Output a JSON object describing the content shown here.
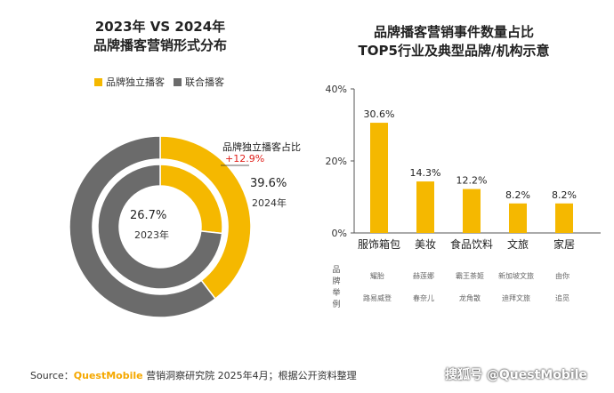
{
  "left_chart": {
    "title_line1": "2023年 VS 2024年",
    "title_line2": "品牌播客营销形式分布",
    "legend": [
      {
        "label": "品牌独立播客",
        "color": "#f5b800"
      },
      {
        "label": "联合播客",
        "color": "#6b6b6b"
      }
    ],
    "annotation": {
      "label": "品牌独立播客占比",
      "change": "+12.9%",
      "change_color": "#e0201b"
    },
    "outer_value": "39.6%",
    "outer_year": "2024年",
    "inner_value": "26.7%",
    "inner_year": "2023年"
  },
  "right_chart": {
    "title_line1": "品牌播客营销事件数量占比",
    "title_line2": "TOP5行业及典型品牌/机构示意",
    "brand_axis_label": [
      "品",
      "牌",
      "举",
      "例"
    ]
  },
  "chart_data": [
    {
      "type": "pie",
      "variant": "nested-donut",
      "title": "2023年 VS 2024年 品牌播客营销形式分布",
      "rings": [
        {
          "name": "2024年",
          "ring": "outer",
          "values": [
            39.6,
            60.4
          ],
          "labels": [
            "品牌独立播客",
            "联合播客"
          ]
        },
        {
          "name": "2023年",
          "ring": "inner",
          "values": [
            26.7,
            73.3
          ],
          "labels": [
            "品牌独立播客",
            "联合播客"
          ]
        }
      ],
      "colors": [
        "#f5b800",
        "#6b6b6b"
      ]
    },
    {
      "type": "bar",
      "title": "品牌播客营销事件数量占比 TOP5行业及典型品牌/机构示意",
      "categories": [
        "服饰箱包",
        "美妆",
        "食品饮料",
        "文旅",
        "家居"
      ],
      "values": [
        30.6,
        14.3,
        12.2,
        8.2,
        8.2
      ],
      "value_labels": [
        "30.6%",
        "14.3%",
        "12.2%",
        "8.2%",
        "8.2%"
      ],
      "ylim": [
        0,
        40
      ],
      "yticks": [
        "0%",
        "20%",
        "40%"
      ],
      "grid": false,
      "bar_color": "#f5b800",
      "brands": [
        [
          "耀胎",
          "路易威登"
        ],
        [
          "赫莲娜",
          "春奈儿"
        ],
        [
          "霸王茶姬",
          "龙角散"
        ],
        [
          "新加坡文旅",
          "迪拜文旅"
        ],
        [
          "由你",
          "追觅"
        ]
      ]
    }
  ],
  "footer": {
    "source_prefix": "Source：",
    "source_brand": "QuestMobile",
    "source_text": "营销洞察研究院 2025年4月；根据公开资料整理",
    "watermark": "搜狐号 @QuestMobile"
  }
}
